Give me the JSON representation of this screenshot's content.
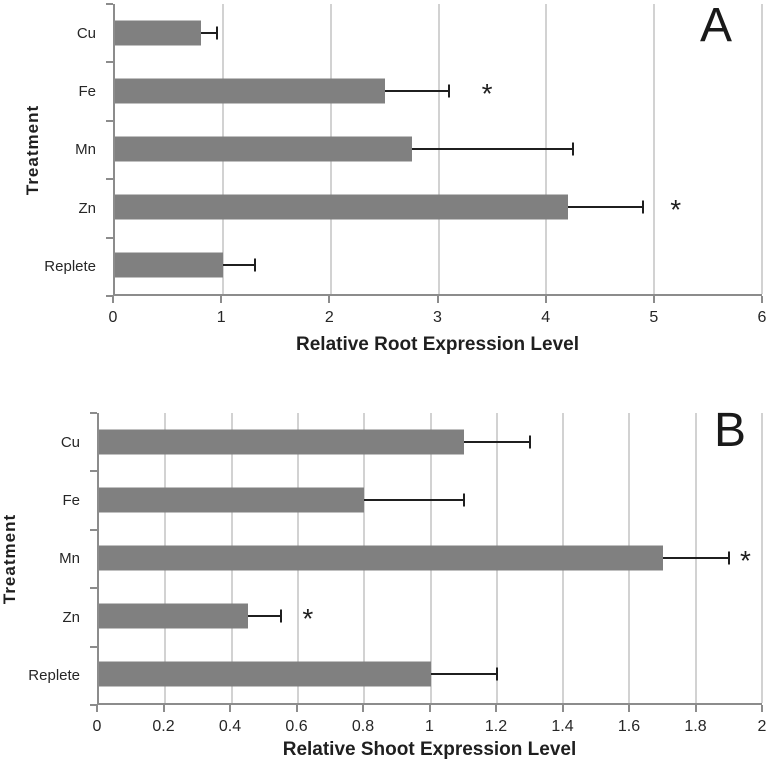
{
  "colors": {
    "background": "#ffffff",
    "bar": "#808080",
    "gridline": "#a6a6a6",
    "axis": "#8c8c8c",
    "error": "#1f1f1f",
    "text": "#262626"
  },
  "chart_data": [
    {
      "type": "bar",
      "orientation": "horizontal",
      "panel_label": "A",
      "xlabel": "Relative Root Expression Level",
      "ylabel": "Treatment",
      "xlim": [
        0,
        6
      ],
      "grid": true,
      "legend": false,
      "significance_glyph": "*",
      "categories": [
        "Cu",
        "Fe",
        "Mn",
        "Zn",
        "Replete"
      ],
      "values": [
        0.8,
        2.5,
        2.75,
        4.2,
        1.0
      ],
      "error_plus": [
        0.15,
        0.6,
        1.5,
        0.7,
        0.3
      ],
      "significance_marks": [
        null,
        3.45,
        null,
        5.2,
        null
      ],
      "xticks": [
        {
          "v": 0,
          "label": "0"
        },
        {
          "v": 1,
          "label": "1"
        },
        {
          "v": 2,
          "label": "2"
        },
        {
          "v": 3,
          "label": "3"
        },
        {
          "v": 4,
          "label": "4"
        },
        {
          "v": 5,
          "label": "5"
        },
        {
          "v": 6,
          "label": "6"
        }
      ]
    },
    {
      "type": "bar",
      "orientation": "horizontal",
      "panel_label": "B",
      "xlabel": "Relative Shoot Expression Level",
      "ylabel": "Treatment",
      "xlim": [
        0,
        2
      ],
      "grid": true,
      "legend": false,
      "significance_glyph": "*",
      "categories": [
        "Cu",
        "Fe",
        "Mn",
        "Zn",
        "Replete"
      ],
      "values": [
        1.1,
        0.8,
        1.7,
        0.45,
        1.0
      ],
      "error_plus": [
        0.2,
        0.3,
        0.2,
        0.1,
        0.2
      ],
      "significance_marks": [
        null,
        null,
        1.95,
        0.63,
        null
      ],
      "xticks": [
        {
          "v": 0,
          "label": "0"
        },
        {
          "v": 0.2,
          "label": "0.2"
        },
        {
          "v": 0.4,
          "label": "0.4"
        },
        {
          "v": 0.6,
          "label": "0.6"
        },
        {
          "v": 0.8,
          "label": "0.8"
        },
        {
          "v": 1,
          "label": "1"
        },
        {
          "v": 1.2,
          "label": "1.2"
        },
        {
          "v": 1.4,
          "label": "1.4"
        },
        {
          "v": 1.6,
          "label": "1.6"
        },
        {
          "v": 1.8,
          "label": "1.8"
        },
        {
          "v": 2,
          "label": "2"
        }
      ]
    }
  ]
}
